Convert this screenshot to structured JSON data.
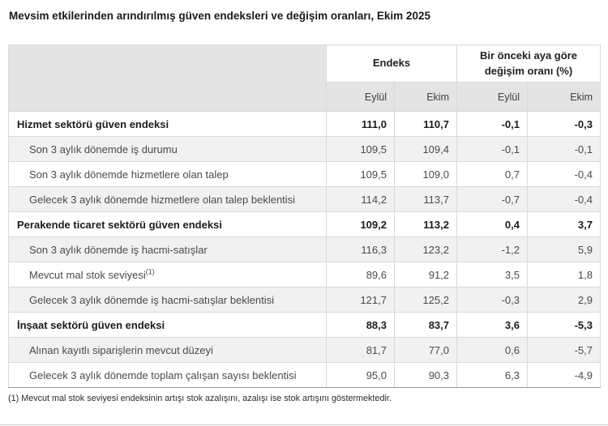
{
  "title": "Mevsim etkilerinden arındırılmış güven endeksleri ve değişim oranları, Ekim 2025",
  "table": {
    "group_headers": [
      "Endeks",
      "Bir önceki aya göre değişim oranı (%)"
    ],
    "sub_headers": [
      "Eylül",
      "Ekim",
      "Eylül",
      "Ekim"
    ],
    "rows": [
      {
        "label": "Hizmet sektörü güven endeksi",
        "bold": true,
        "values": [
          "111,0",
          "110,7",
          "-0,1",
          "-0,3"
        ]
      },
      {
        "label": "Son 3 aylık dönemde iş durumu",
        "bold": false,
        "values": [
          "109,5",
          "109,4",
          "-0,1",
          "-0,1"
        ]
      },
      {
        "label": "Son 3 aylık dönemde hizmetlere olan talep",
        "bold": false,
        "values": [
          "109,5",
          "109,0",
          "0,7",
          "-0,4"
        ]
      },
      {
        "label": "Gelecek 3 aylık dönemde hizmetlere olan talep beklentisi",
        "bold": false,
        "values": [
          "114,2",
          "113,7",
          "-0,7",
          "-0,4"
        ]
      },
      {
        "label": "Perakende ticaret sektörü güven endeksi",
        "bold": true,
        "values": [
          "109,2",
          "113,2",
          "0,4",
          "3,7"
        ]
      },
      {
        "label": "Son 3 aylık dönemde iş hacmi-satışlar",
        "bold": false,
        "values": [
          "116,3",
          "123,2",
          "-1,2",
          "5,9"
        ]
      },
      {
        "label": "Mevcut mal stok seviyesi",
        "sup": "(1)",
        "bold": false,
        "values": [
          "89,6",
          "91,2",
          "3,5",
          "1,8"
        ]
      },
      {
        "label": "Gelecek 3 aylık dönemde iş hacmi-satışlar beklentisi",
        "bold": false,
        "values": [
          "121,7",
          "125,2",
          "-0,3",
          "2,9"
        ]
      },
      {
        "label": "İnşaat sektörü güven endeksi",
        "bold": true,
        "values": [
          "88,3",
          "83,7",
          "3,6",
          "-5,3"
        ]
      },
      {
        "label": "Alınan kayıtlı siparişlerin mevcut düzeyi",
        "bold": false,
        "values": [
          "81,7",
          "77,0",
          "0,6",
          "-5,7"
        ]
      },
      {
        "label": "Gelecek 3 aylık dönemde toplam çalışan sayısı beklentisi",
        "bold": false,
        "values": [
          "95,0",
          "90,3",
          "6,3",
          "-4,9"
        ]
      }
    ]
  },
  "footnote": "(1) Mevcut mal stok seviyesi endeksinin artışı stok azalışını, azalışı ise stok artışını göstermektedir.",
  "colors": {
    "header_bg": "#e4e4e4",
    "alt_row_bg": "#f1f1f1",
    "cell_border": "#d9d9d9",
    "section_border": "#9b9b9b",
    "text_dark": "#1c1c1c",
    "text_muted": "#4a4a4a"
  }
}
